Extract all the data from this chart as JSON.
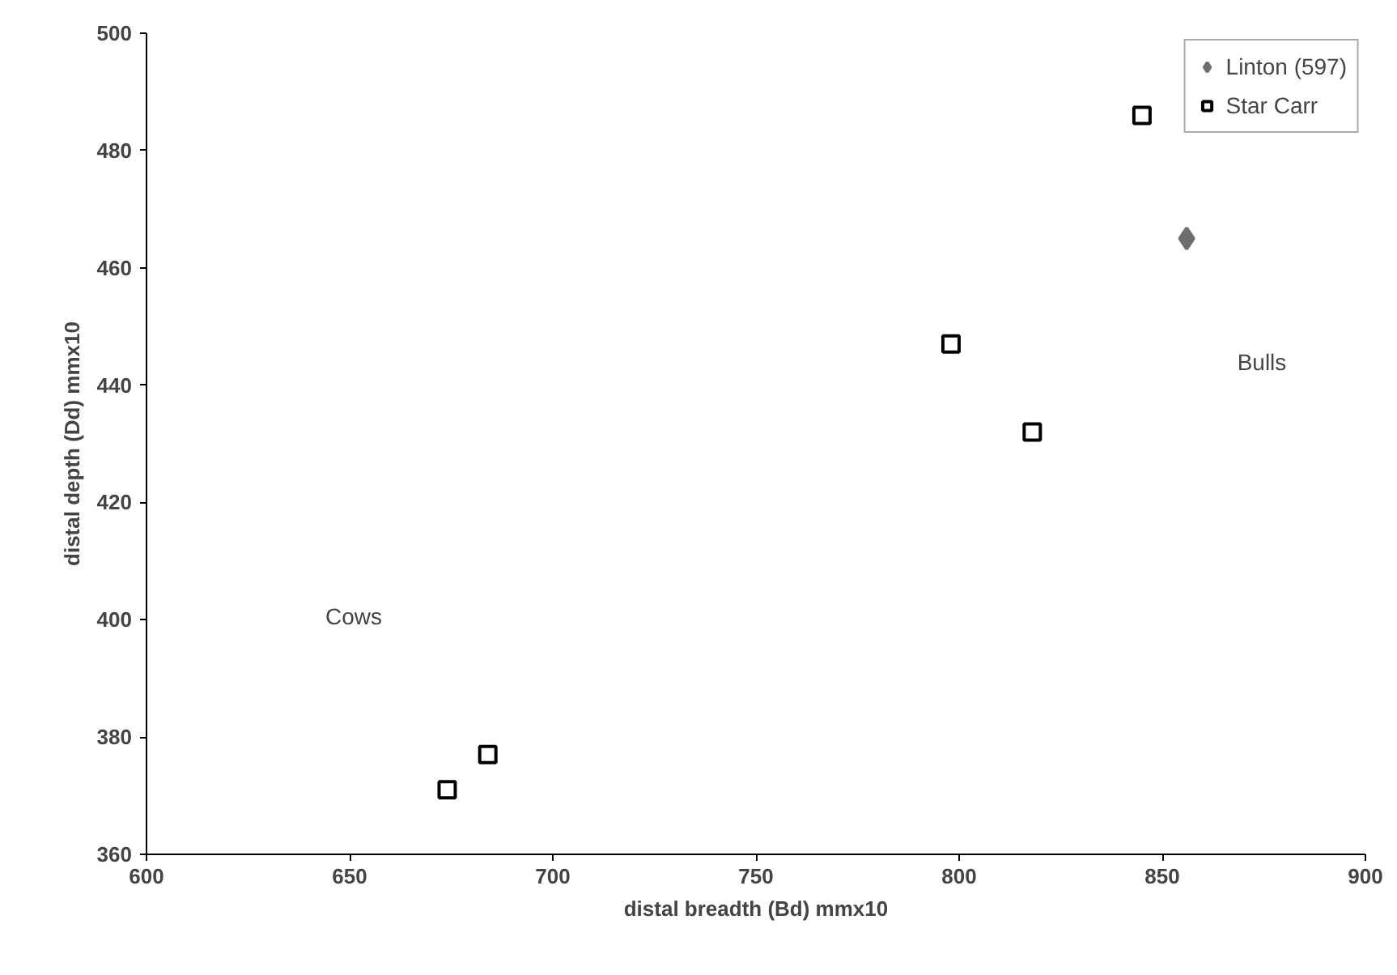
{
  "chart_data": {
    "type": "scatter",
    "xlabel": "distal breadth (Bd) mmx10",
    "ylabel": "distal depth (Dd) mmx10",
    "xlim": [
      600,
      900
    ],
    "xticks": [
      600,
      650,
      700,
      750,
      800,
      850,
      900
    ],
    "ylim": [
      360,
      500
    ],
    "yticks": [
      360,
      380,
      400,
      420,
      440,
      460,
      480,
      500
    ],
    "grid": false,
    "legend": "top right",
    "series": [
      {
        "name": "Linton (597)",
        "color": "#6e6e6e",
        "marker": "diamond",
        "x": [
          856
        ],
        "values": [
          465
        ]
      },
      {
        "name": "Star Carr",
        "color": "#000000",
        "marker": "square",
        "x": [
          674,
          684,
          798,
          818,
          845
        ],
        "values": [
          371,
          377,
          447,
          432,
          486
        ]
      }
    ],
    "annotations": [
      "Cows",
      "Bulls"
    ]
  }
}
